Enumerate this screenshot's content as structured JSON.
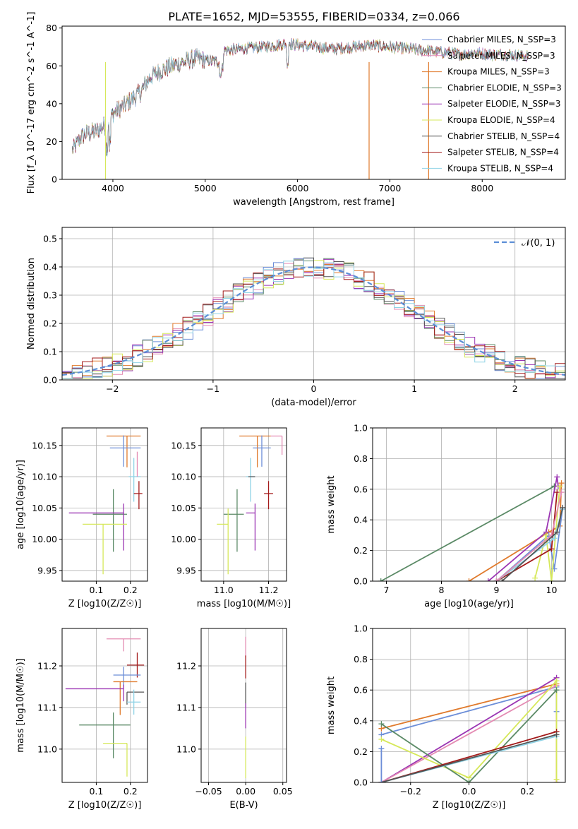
{
  "figure": {
    "title": "PLATE=1652, MJD=53555, FIBERID=0334, z=0.066"
  },
  "chart_data": [
    {
      "id": "spectrum",
      "type": "line",
      "xlabel": "wavelength [Angstrom, rest frame]",
      "ylabel": "Flux [f_λ 10^-17 erg cm^-2 s^-1 A^-1]",
      "xlim": [
        3450,
        8900
      ],
      "ylim": [
        0,
        81
      ],
      "xticks": [
        4000,
        5000,
        6000,
        7000,
        8000
      ],
      "yticks": [
        0,
        20,
        40,
        60,
        80
      ],
      "grid": false,
      "legend_position": "top-right",
      "continuum": {
        "x": [
          3560,
          3650,
          3700,
          3800,
          3900,
          3960,
          4000,
          4100,
          4200,
          4300,
          4400,
          4500,
          4700,
          4900,
          5000,
          5150,
          5200,
          5400,
          5600,
          5800,
          5900,
          6000,
          6200,
          6400,
          6600,
          6800,
          7000,
          7200,
          7400,
          7600,
          7800,
          7900,
          8100,
          8300,
          8500
        ],
        "y": [
          15,
          22,
          24,
          25,
          28,
          30,
          35,
          38,
          42,
          46,
          54,
          57,
          61,
          64,
          63,
          62,
          68,
          69,
          70,
          71,
          72,
          71,
          70,
          69,
          70,
          71,
          70,
          69,
          68,
          67,
          66,
          67,
          66,
          66,
          65
        ]
      },
      "series": [
        {
          "name": "Chabrier MILES, N_SSP=3",
          "color": "#6c8ed8"
        },
        {
          "name": "Salpeter MILES, N_SSP=3",
          "color": "#e48bb3"
        },
        {
          "name": "Kroupa MILES, N_SSP=3",
          "color": "#e07a2c"
        },
        {
          "name": "Chabrier ELODIE, N_SSP=3",
          "color": "#5b8a66"
        },
        {
          "name": "Salpeter ELODIE, N_SSP=3",
          "color": "#9b35b3"
        },
        {
          "name": "Kroupa ELODIE, N_SSP=4",
          "color": "#d6e85a"
        },
        {
          "name": "Chabrier STELIB, N_SSP=4",
          "color": "#555555"
        },
        {
          "name": "Salpeter STELIB, N_SSP=4",
          "color": "#a31b1b"
        },
        {
          "name": "Kroupa STELIB, N_SSP=4",
          "color": "#8fd3e6"
        }
      ],
      "data_color": "#888888"
    },
    {
      "id": "residuals",
      "type": "line",
      "xlabel": "(data-model)/error",
      "ylabel": "Normed distribution",
      "xlim": [
        -2.5,
        2.5
      ],
      "ylim": [
        0,
        0.54
      ],
      "xticks": [
        -2,
        -1,
        0,
        1,
        2
      ],
      "yticks": [
        0.0,
        0.1,
        0.2,
        0.3,
        0.4,
        0.5
      ],
      "grid": true,
      "legend_position": "top-right",
      "legend_label": "𝒩(0, 1)",
      "gaussian_color": "#5b8ed6",
      "bin_width": 0.1
    },
    {
      "id": "age-vs-Z",
      "type": "scatter",
      "xlabel": "Z [log10(Z/Z☉)]",
      "ylabel": "age  [log10(age/yr)]",
      "xlim": [
        0.0,
        0.25
      ],
      "ylim": [
        9.933,
        10.178
      ],
      "xticks": [
        0.1,
        0.2
      ],
      "yticks": [
        9.95,
        10.0,
        10.05,
        10.1,
        10.15
      ],
      "grid": true,
      "points": [
        {
          "x": 0.19,
          "y": 10.165,
          "xerr": [
            0.06,
            0.04
          ],
          "yerr": [
            0.05,
            0.0
          ],
          "color": "#e07a2c"
        },
        {
          "x": 0.18,
          "y": 10.146,
          "xerr": [
            0.04,
            0.05
          ],
          "yerr": [
            0.03,
            0.02
          ],
          "color": "#6c8ed8"
        },
        {
          "x": 0.21,
          "y": 10.1,
          "xerr": [
            0.015,
            0.02
          ],
          "yerr": [
            0.04,
            0.03
          ],
          "color": "#8fd3e6"
        },
        {
          "x": 0.225,
          "y": 10.073,
          "xerr": [
            0.015,
            0.01
          ],
          "yerr": [
            0.025,
            0.02
          ],
          "color": "#a31b1b"
        },
        {
          "x": 0.15,
          "y": 10.04,
          "xerr": [
            0.06,
            0.04
          ],
          "yerr": [
            0.06,
            0.04
          ],
          "color": "#5b8a66"
        },
        {
          "x": 0.18,
          "y": 10.042,
          "xerr": [
            0.16,
            0.0
          ],
          "yerr": [
            0.06,
            0.015
          ],
          "color": "#9b35b3"
        },
        {
          "x": 0.12,
          "y": 10.024,
          "xerr": [
            0.06,
            0.07
          ],
          "yerr": [
            0.08,
            0.0
          ],
          "color": "#d6e85a"
        },
        {
          "x": 0.22,
          "y": 10.1,
          "xerr": [
            0.0,
            0.0
          ],
          "yerr": [
            0.0,
            0.04
          ],
          "color": "#e48bb3"
        }
      ]
    },
    {
      "id": "age-vs-mass",
      "type": "scatter",
      "xlabel": "mass [log10(M/M☉)]",
      "ylabel": "",
      "xlim": [
        10.9,
        11.28
      ],
      "ylim": [
        9.933,
        10.178
      ],
      "xticks": [
        11.0,
        11.2
      ],
      "yticks": [
        9.95,
        10.0,
        10.05,
        10.1,
        10.15
      ],
      "grid": true,
      "points": [
        {
          "x": 11.15,
          "y": 10.165,
          "xerr": [
            0.08,
            0.06
          ],
          "yerr": [
            0.05,
            0.0
          ],
          "color": "#e07a2c"
        },
        {
          "x": 11.17,
          "y": 10.146,
          "xerr": [
            0.04,
            0.04
          ],
          "yerr": [
            0.03,
            0.02
          ],
          "color": "#6c8ed8"
        },
        {
          "x": 11.26,
          "y": 10.165,
          "xerr": [
            0.05,
            0.0
          ],
          "yerr": [
            0.03,
            0.0
          ],
          "color": "#e48bb3"
        },
        {
          "x": 11.12,
          "y": 10.1,
          "xerr": [
            0.02,
            0.02
          ],
          "yerr": [
            0.04,
            0.03
          ],
          "color": "#8fd3e6"
        },
        {
          "x": 11.2,
          "y": 10.073,
          "xerr": [
            0.02,
            0.02
          ],
          "yerr": [
            0.025,
            0.02
          ],
          "color": "#a31b1b"
        },
        {
          "x": 11.06,
          "y": 10.04,
          "xerr": [
            0.06,
            0.03
          ],
          "yerr": [
            0.06,
            0.04
          ],
          "color": "#5b8a66"
        },
        {
          "x": 11.14,
          "y": 10.042,
          "xerr": [
            0.04,
            0.0
          ],
          "yerr": [
            0.06,
            0.015
          ],
          "color": "#9b35b3"
        },
        {
          "x": 11.02,
          "y": 10.024,
          "xerr": [
            0.05,
            0.0
          ],
          "yerr": [
            0.08,
            0.025
          ],
          "color": "#d6e85a"
        },
        {
          "x": 11.14,
          "y": 10.1,
          "xerr": [
            0.03,
            0.0
          ],
          "yerr": [
            0.0,
            0.0
          ],
          "color": "#555555"
        }
      ]
    },
    {
      "id": "mass-weight-vs-age",
      "type": "line",
      "xlabel": "age  [log10(age/yr)]",
      "ylabel": "mass weight",
      "xlim": [
        6.75,
        10.25
      ],
      "ylim": [
        0,
        1
      ],
      "xticks": [
        7,
        8,
        9,
        10
      ],
      "yticks": [
        0.0,
        0.2,
        0.4,
        0.6,
        0.8,
        1.0
      ],
      "grid": true,
      "series": [
        {
          "color": "#5b8a66",
          "x": [
            6.9,
            10.05
          ],
          "y": [
            0.0,
            0.62
          ]
        },
        {
          "color": "#e07a2c",
          "x": [
            8.5,
            9.95,
            10.15,
            10.18
          ],
          "y": [
            0.0,
            0.32,
            0.36,
            0.64
          ]
        },
        {
          "color": "#9b35b3",
          "x": [
            8.85,
            9.9,
            10.1,
            10.12
          ],
          "y": [
            0.0,
            0.32,
            0.68,
            0.62
          ]
        },
        {
          "color": "#6c8ed8",
          "x": [
            9.0,
            9.95,
            10.05,
            10.2
          ],
          "y": [
            0.0,
            0.3,
            0.08,
            0.47
          ]
        },
        {
          "color": "#d6e85a",
          "x": [
            9.7,
            9.9,
            10.0,
            10.15
          ],
          "y": [
            0.02,
            0.3,
            0.0,
            0.62
          ]
        },
        {
          "color": "#a31b1b",
          "x": [
            9.0,
            10.0,
            10.1
          ],
          "y": [
            0.0,
            0.21,
            0.58
          ]
        },
        {
          "color": "#8fd3e6",
          "x": [
            9.0,
            10.05,
            10.2
          ],
          "y": [
            0.0,
            0.28,
            0.47
          ]
        },
        {
          "color": "#e48bb3",
          "x": [
            9.0,
            10.0,
            10.18
          ],
          "y": [
            0.0,
            0.3,
            0.58
          ]
        },
        {
          "color": "#555555",
          "x": [
            9.1,
            10.1,
            10.2
          ],
          "y": [
            0.0,
            0.32,
            0.48
          ]
        }
      ]
    },
    {
      "id": "mass-vs-Z",
      "type": "scatter",
      "xlabel": "Z [log10(Z/Z☉)]",
      "ylabel": "mass [log10(M/M☉)]",
      "xlim": [
        0.0,
        0.25
      ],
      "ylim": [
        10.92,
        11.29
      ],
      "xticks": [
        0.1,
        0.2
      ],
      "yticks": [
        11.0,
        11.1,
        11.2
      ],
      "grid": true,
      "points": [
        {
          "x": 0.22,
          "y": 11.202,
          "xerr": [
            0.03,
            0.02
          ],
          "yerr": [
            0.03,
            0.03
          ],
          "color": "#a31b1b"
        },
        {
          "x": 0.18,
          "y": 11.265,
          "xerr": [
            0.05,
            0.05
          ],
          "yerr": [
            0.03,
            0.0
          ],
          "color": "#e48bb3"
        },
        {
          "x": 0.18,
          "y": 11.178,
          "xerr": [
            0.03,
            0.05
          ],
          "yerr": [
            0.03,
            0.02
          ],
          "color": "#6c8ed8"
        },
        {
          "x": 0.17,
          "y": 11.162,
          "xerr": [
            0.02,
            0.05
          ],
          "yerr": [
            0.08,
            0.0
          ],
          "color": "#e07a2c"
        },
        {
          "x": 0.19,
          "y": 11.137,
          "xerr": [
            0.0,
            0.05
          ],
          "yerr": [
            0.03,
            0.0
          ],
          "color": "#555555"
        },
        {
          "x": 0.18,
          "y": 11.145,
          "xerr": [
            0.17,
            0.0
          ],
          "yerr": [
            0.03,
            0.01
          ],
          "color": "#9b35b3"
        },
        {
          "x": 0.21,
          "y": 11.113,
          "xerr": [
            0.02,
            0.02
          ],
          "yerr": [
            0.03,
            0.03
          ],
          "color": "#8fd3e6"
        },
        {
          "x": 0.15,
          "y": 11.058,
          "xerr": [
            0.1,
            0.05
          ],
          "yerr": [
            0.08,
            0.03
          ],
          "color": "#5b8a66"
        },
        {
          "x": 0.19,
          "y": 11.014,
          "xerr": [
            0.07,
            0.0
          ],
          "yerr": [
            0.08,
            0.0
          ],
          "color": "#d6e85a"
        }
      ]
    },
    {
      "id": "mass-vs-EBV",
      "type": "scatter",
      "xlabel": "E(B-V)",
      "ylabel": "",
      "xlim": [
        -0.06,
        0.055
      ],
      "ylim": [
        10.92,
        11.29
      ],
      "xticks": [
        -0.05,
        0.0,
        0.05
      ],
      "yticks": [
        11.0,
        11.1,
        11.2
      ],
      "grid": true,
      "points": [
        {
          "x": 0.0,
          "y": 11.27,
          "yerr": [
            0.05,
            0.0
          ],
          "color": "#e48bb3"
        },
        {
          "x": 0.0,
          "y": 11.2,
          "yerr": [
            0.03,
            0.025
          ],
          "color": "#a31b1b"
        },
        {
          "x": 0.0,
          "y": 11.14,
          "yerr": [
            0.04,
            0.02
          ],
          "color": "#555555"
        },
        {
          "x": 0.0,
          "y": 11.11,
          "yerr": [
            0.06,
            0.0
          ],
          "color": "#9b35b3"
        },
        {
          "x": 0.0,
          "y": 11.01,
          "yerr": [
            0.08,
            0.02
          ],
          "color": "#d6e85a"
        }
      ]
    },
    {
      "id": "mass-weight-vs-Z",
      "type": "line",
      "xlabel": "Z [log10(Z/Z☉)]",
      "ylabel": "mass weight",
      "xlim": [
        -0.33,
        0.33
      ],
      "ylim": [
        0,
        1
      ],
      "xticks": [
        -0.2,
        0.0,
        0.2
      ],
      "yticks": [
        0.0,
        0.2,
        0.4,
        0.6,
        0.8,
        1.0
      ],
      "grid": true,
      "series": [
        {
          "color": "#e07a2c",
          "x": [
            -0.3,
            0.3,
            0.3
          ],
          "y": [
            0.35,
            0.64,
            0.0
          ]
        },
        {
          "color": "#6c8ed8",
          "x": [
            -0.3,
            0.3,
            0.3
          ],
          "y": [
            0.31,
            0.62,
            0.46
          ]
        },
        {
          "color": "#9b35b3",
          "x": [
            -0.3,
            0.3
          ],
          "y": [
            0.0,
            0.68
          ]
        },
        {
          "color": "#e48bb3",
          "x": [
            -0.3,
            0.3
          ],
          "y": [
            0.0,
            0.63
          ]
        },
        {
          "color": "#d6e85a",
          "x": [
            -0.3,
            0.0,
            0.3,
            0.3
          ],
          "y": [
            0.28,
            0.03,
            0.66,
            0.02
          ]
        },
        {
          "color": "#5b8a66",
          "x": [
            -0.3,
            0.0,
            0.3
          ],
          "y": [
            0.38,
            0.0,
            0.6
          ]
        },
        {
          "color": "#a31b1b",
          "x": [
            -0.3,
            0.3
          ],
          "y": [
            0.0,
            0.33
          ]
        },
        {
          "color": "#8fd3e6",
          "x": [
            -0.3,
            0.3
          ],
          "y": [
            0.0,
            0.3
          ]
        },
        {
          "color": "#555555",
          "x": [
            -0.3,
            0.3
          ],
          "y": [
            0.0,
            0.31
          ]
        },
        {
          "color": "#6c8ed8",
          "x": [
            -0.3,
            -0.3
          ],
          "y": [
            0.0,
            0.22
          ]
        }
      ]
    }
  ]
}
